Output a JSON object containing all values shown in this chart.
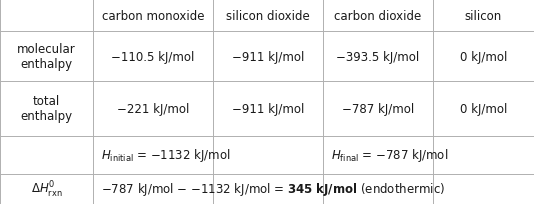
{
  "col_headers": [
    "carbon monoxide",
    "silicon dioxide",
    "carbon dioxide",
    "silicon"
  ],
  "row_label_mol": "molecular\nenthalpy",
  "row_label_tot": "total\nenthalpy",
  "mol_enthalpy": [
    "−110.5 kJ/mol",
    "−911 kJ/mol",
    "−393.5 kJ/mol",
    "0 kJ/mol"
  ],
  "total_enthalpy": [
    "−221 kJ/mol",
    "−911 kJ/mol",
    "−787 kJ/mol",
    "0 kJ/mol"
  ],
  "background": "#ffffff",
  "text_color": "#1a1a1a",
  "border_color": "#b0b0b0",
  "font_size": 8.5,
  "col_lefts": [
    0,
    93,
    213,
    323,
    433,
    534
  ],
  "rows_bottom": [
    0,
    30,
    68,
    123,
    173,
    205
  ]
}
